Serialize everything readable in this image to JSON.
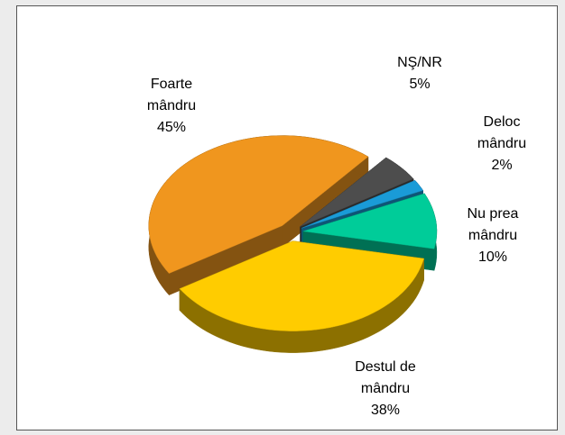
{
  "chart_data": {
    "type": "pie",
    "categories": [
      "NŞ/NR",
      "Deloc mândru",
      "Nu prea mândru",
      "Destul de mândru",
      "Foarte mândru"
    ],
    "values": [
      5,
      2,
      10,
      38,
      45
    ],
    "value_labels": [
      "5%",
      "2%",
      "10%",
      "38%",
      "45%"
    ],
    "colors": [
      "#4d4d4d",
      "#1a9bd7",
      "#00cc99",
      "#ffcc00",
      "#f0961e"
    ]
  }
}
